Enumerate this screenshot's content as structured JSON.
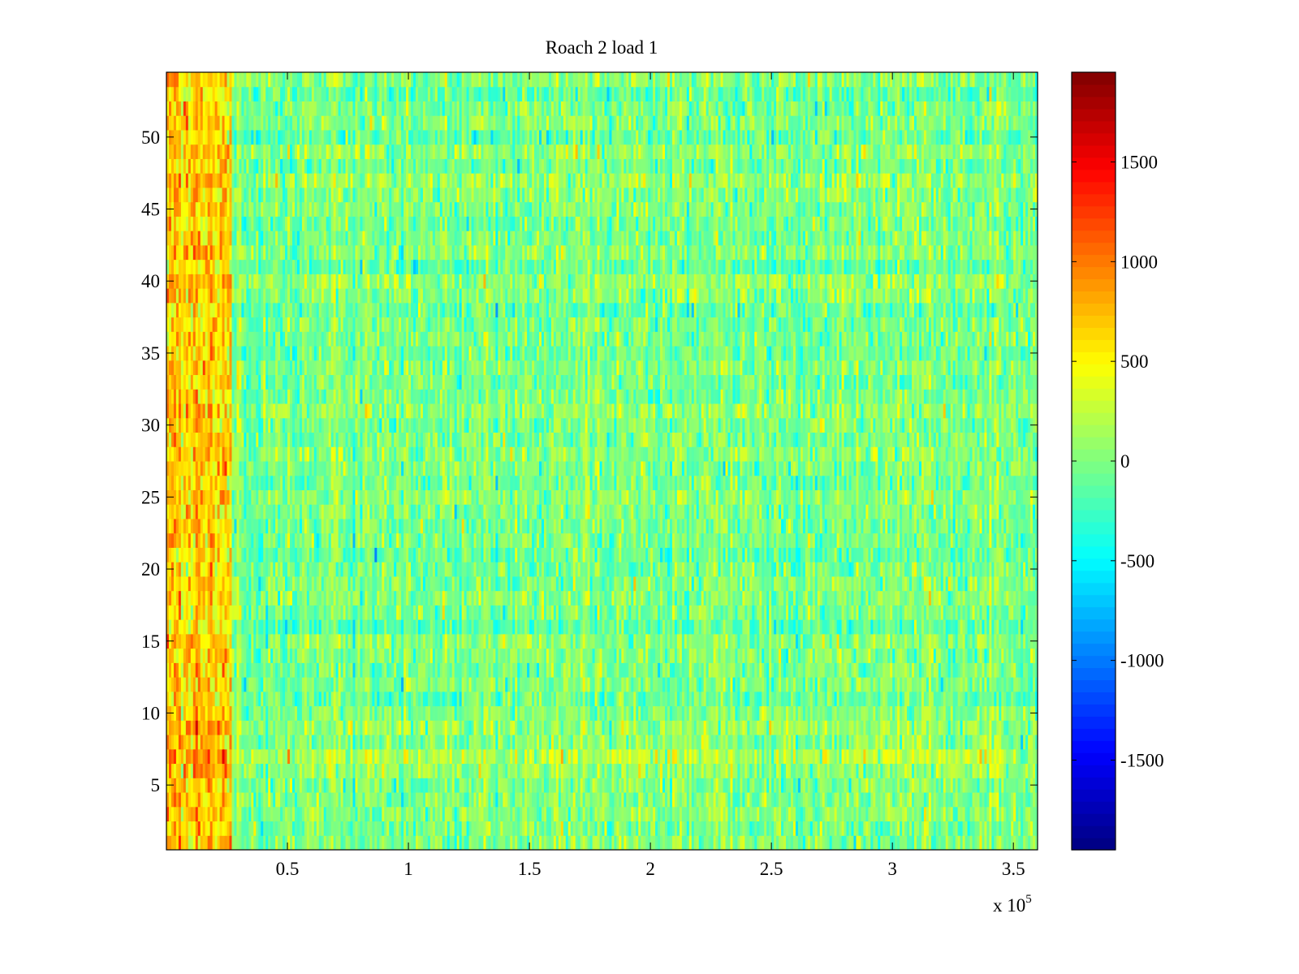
{
  "figure": {
    "title": "Roach 2 load 1",
    "x_multiplier_label": "x 10",
    "x_multiplier_exponent": "5"
  },
  "chart_data": {
    "type": "heatmap",
    "title": "Roach 2 load 1",
    "xlabel": "",
    "ylabel": "",
    "xlim": [
      0,
      3.6
    ],
    "x_scale_factor": "x 10^5",
    "ylim": [
      0.5,
      54.5
    ],
    "x_ticks": [
      0.5,
      1,
      1.5,
      2,
      2.5,
      3,
      3.5
    ],
    "x_tick_labels": [
      "0.5",
      "1",
      "1.5",
      "2",
      "2.5",
      "3",
      "3.5"
    ],
    "y_ticks": [
      5,
      10,
      15,
      20,
      25,
      30,
      35,
      40,
      45,
      50
    ],
    "y_tick_labels": [
      "5",
      "10",
      "15",
      "20",
      "25",
      "30",
      "35",
      "40",
      "45",
      "50"
    ],
    "rows": 54,
    "colormap": "jet",
    "color_range": [
      -1950,
      1950
    ],
    "colorbar_ticks": [
      1500,
      1000,
      500,
      0,
      -500,
      -1000,
      -1500
    ],
    "colorbar_tick_labels": [
      "1500",
      "1000",
      "500",
      "0",
      "-500",
      "-1000",
      "-1500"
    ],
    "value_summary": {
      "typical_range": [
        -600,
        500
      ],
      "typical_mean": 0,
      "hot_region": {
        "x_range": [
          0,
          0.27
        ],
        "typical_value": 900
      },
      "hot_rows": [
        7
      ]
    },
    "grid": false,
    "colorbar_position": "right"
  }
}
